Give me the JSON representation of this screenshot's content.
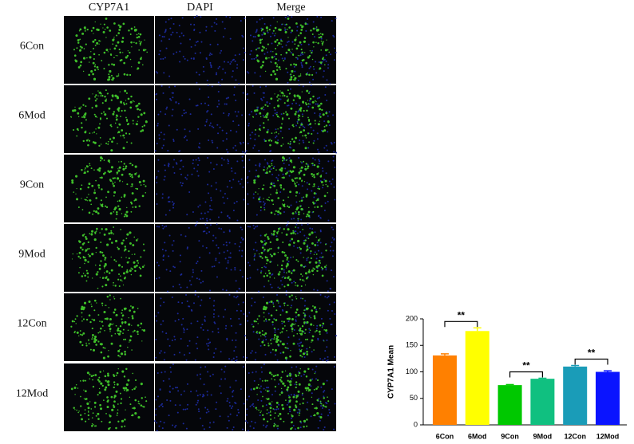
{
  "image_grid": {
    "columns": [
      "CYP7A1",
      "DAPI",
      "Merge"
    ],
    "rows": [
      "6Con",
      "6Mod",
      "9Con",
      "9Mod",
      "12Con",
      "12Mod"
    ]
  },
  "chart_data": {
    "type": "bar",
    "y_label": "CYP7A1 Mean",
    "categories": [
      "6Con",
      "6Mod",
      "9Con",
      "9Mod",
      "12Con",
      "12Mod"
    ],
    "values": [
      131,
      177,
      75,
      87,
      110,
      100
    ],
    "errors": [
      3,
      6,
      1,
      1,
      2,
      2
    ],
    "colors": [
      "#ff8000",
      "#ffff00",
      "#00c800",
      "#10c080",
      "#1a9cb8",
      "#0a14ff"
    ],
    "ylim": [
      0,
      200
    ],
    "yticks": [
      0,
      50,
      100,
      150,
      200
    ],
    "annotations": [
      {
        "label": "**",
        "between": [
          "6Con",
          "6Mod"
        ]
      },
      {
        "label": "**",
        "between": [
          "9Con",
          "9Mod"
        ]
      },
      {
        "label": "**",
        "between": [
          "12Con",
          "12Mod"
        ]
      }
    ]
  }
}
